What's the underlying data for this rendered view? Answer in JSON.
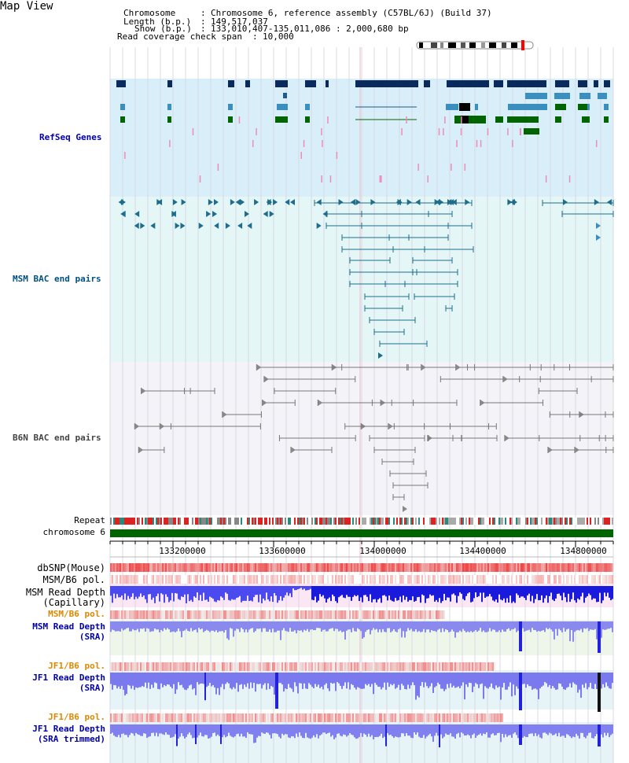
{
  "map_title": "Map View",
  "header": {
    "chromosome_key": "Chromosome",
    "chromosome_val": "Chromosome 6, reference assembly (C57BL/6J) (Build 37)",
    "length_key": "Length (b.p.)",
    "length_val": "149,517,037",
    "show_key": "Show (b.p.)",
    "show_val": "133,010,407-135,011,086 : 2,000,680 bp",
    "coverage_key": "Read coverage check span",
    "coverage_val": "10,000"
  },
  "tracks": {
    "refseq": {
      "label": "RefSeq Genes",
      "color": "#0000aa"
    },
    "msm_bac": {
      "label": "MSM BAC end pairs",
      "color": "#005080"
    },
    "b6n_bac": {
      "label": "B6N BAC end pairs",
      "color": "#444444"
    }
  },
  "side_labels": {
    "repeat": "Repeat",
    "chromosome": "chromosome 6",
    "dbsnp": "dbSNP(Mouse)",
    "msm_b6_pol_1": "MSM/B6 pol.",
    "msm_read_depth_cap_1": "MSM Read Depth",
    "msm_read_depth_cap_2": "(Capillary)",
    "msm_b6_pol_2": "MSM/B6 pol.",
    "msm_read_depth_sra_1": "MSM Read Depth",
    "msm_read_depth_sra_2": "(SRA)",
    "jf1_b6_pol_1": "JF1/B6 pol.",
    "jf1_read_depth_sra_1": "JF1 Read Depth",
    "jf1_read_depth_sra_2": "(SRA)",
    "jf1_b6_pol_2": "JF1/B6 pol.",
    "jf1_read_depth_trim_1": "JF1 Read Depth",
    "jf1_read_depth_trim_2": "(SRA trimmed)"
  },
  "axis_ticks": [
    "133200000",
    "133600000",
    "134000000",
    "134400000",
    "134800000"
  ],
  "colors": {
    "refseq_bg": "#d8eef8",
    "msm_bg": "#e4f6f6",
    "b6n_bg": "#f4f4f8",
    "chromosome_bar": "#006400",
    "read_depth_blue": "#3333ee",
    "pol_red": "#ee4444",
    "label_blue": "#0000aa",
    "label_orange": "#dd8800",
    "label_black": "#000000"
  }
}
